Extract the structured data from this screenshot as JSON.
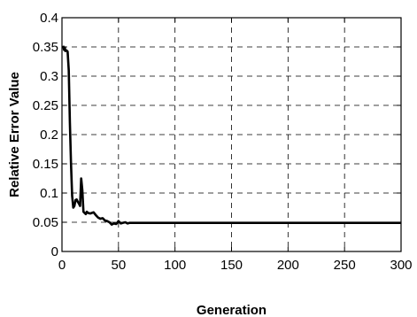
{
  "chart_data": {
    "type": "line",
    "title": "",
    "xlabel": "Generation",
    "ylabel": "Relative Error Value",
    "xlim": [
      0,
      300
    ],
    "ylim": [
      0,
      0.4
    ],
    "x_ticks": [
      0,
      50,
      100,
      150,
      200,
      250,
      300
    ],
    "x_tick_labels": [
      "0",
      "50",
      "100",
      "150",
      "200",
      "250",
      "300"
    ],
    "y_ticks": [
      0,
      0.05,
      0.1,
      0.15,
      0.2,
      0.25,
      0.3,
      0.35,
      0.4
    ],
    "y_tick_labels": [
      "0",
      "0.05",
      "0.1",
      "0.15",
      "0.2",
      "0.25",
      "0.3",
      "0.35",
      "0.4"
    ],
    "grid": true,
    "grid_style": "dashed",
    "legend": "none",
    "series": [
      {
        "color": "#000000",
        "x": [
          1,
          1.3,
          1.8,
          2.5,
          3,
          4,
          5,
          6,
          7,
          8,
          9,
          10,
          11,
          12,
          13,
          14,
          15,
          16,
          17,
          18,
          19,
          20,
          21,
          22,
          23,
          25,
          28,
          30,
          32,
          34,
          36,
          38,
          40,
          42,
          44,
          46,
          48,
          50,
          52,
          54,
          56,
          58,
          60,
          65,
          70,
          100,
          150,
          200,
          250,
          300
        ],
        "y": [
          0.352,
          0.35,
          0.345,
          0.349,
          0.343,
          0.344,
          0.342,
          0.31,
          0.22,
          0.15,
          0.095,
          0.075,
          0.078,
          0.088,
          0.089,
          0.085,
          0.082,
          0.078,
          0.125,
          0.105,
          0.068,
          0.066,
          0.064,
          0.068,
          0.066,
          0.065,
          0.067,
          0.062,
          0.058,
          0.056,
          0.057,
          0.053,
          0.052,
          0.05,
          0.046,
          0.048,
          0.047,
          0.052,
          0.048,
          0.049,
          0.05,
          0.048,
          0.049,
          0.049,
          0.049,
          0.049,
          0.049,
          0.049,
          0.049,
          0.049
        ]
      }
    ]
  }
}
